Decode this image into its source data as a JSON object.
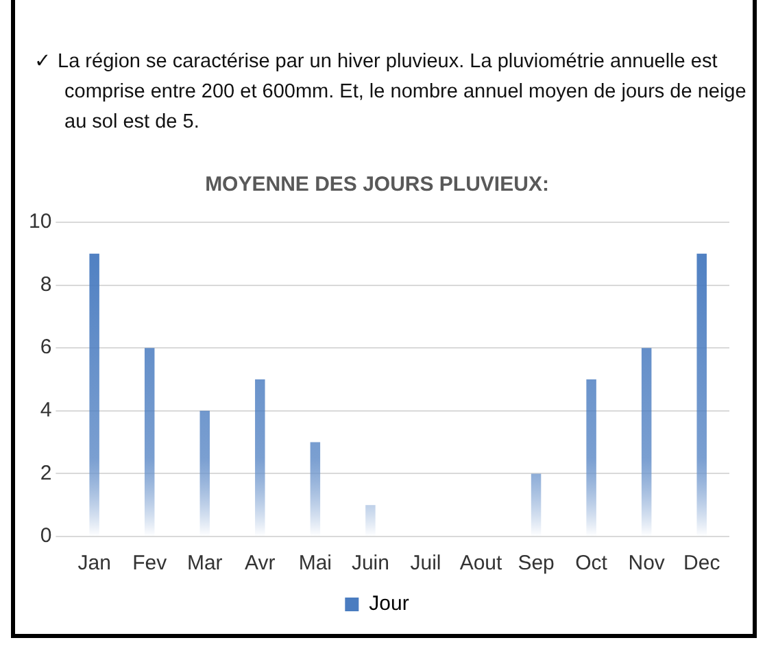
{
  "chart_data": {
    "type": "bar",
    "title": "MOYENNE DES JOURS PLUVIEUX:",
    "annotations": [
      "✓  La région se caractérise par un hiver pluvieux. La pluviométrie annuelle est comprise entre 200 et 600mm. Et, le nombre annuel moyen de jours de neige au sol est de 5."
    ],
    "categories": [
      "Jan",
      "Fev",
      "Mar",
      "Avr",
      "Mai",
      "Juin",
      "Juil",
      "Aout",
      "Sep",
      "Oct",
      "Nov",
      "Dec"
    ],
    "series": [
      {
        "name": "Jour",
        "color": "#4a7cc0",
        "values": [
          9,
          6,
          4,
          5,
          3,
          1,
          0,
          0,
          2,
          5,
          6,
          9
        ]
      }
    ],
    "ylim": [
      0,
      10
    ],
    "yticks": [
      0,
      2,
      4,
      6,
      8,
      10
    ],
    "grid": "y",
    "legend": "bottom"
  }
}
